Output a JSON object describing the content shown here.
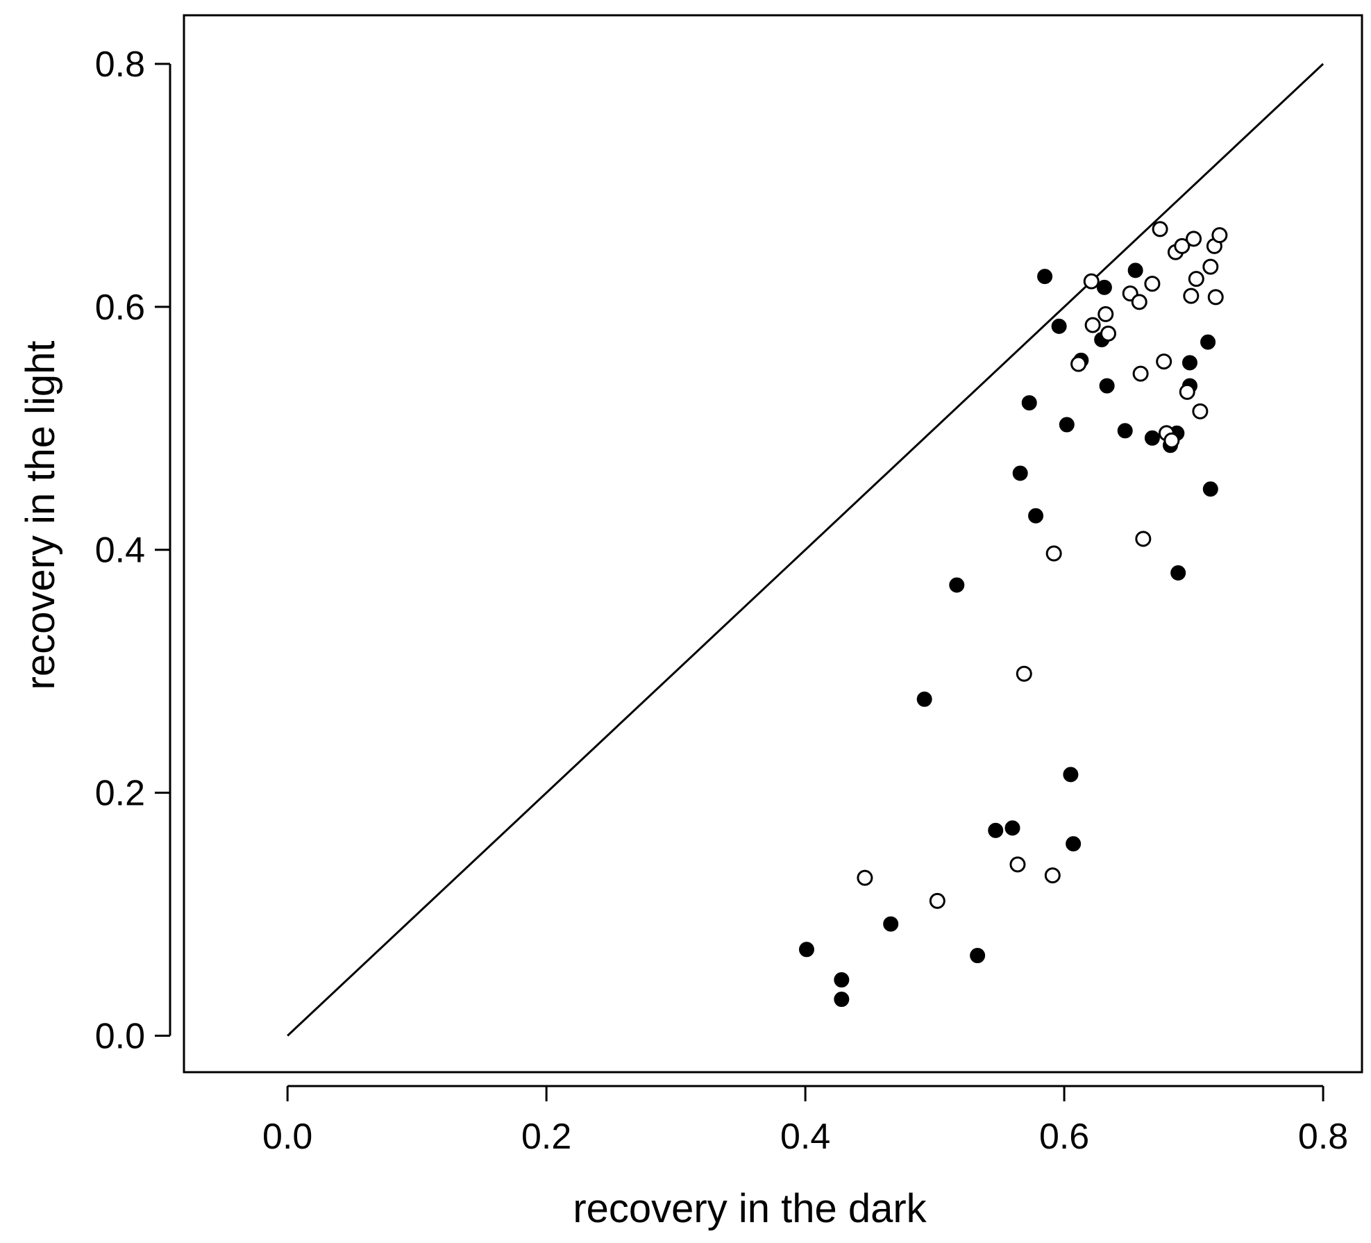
{
  "chart_data": {
    "type": "scatter",
    "title": "",
    "xlabel": "recovery  in the dark",
    "ylabel": "recovery  in  the  light",
    "xlim": [
      -0.08,
      0.83
    ],
    "ylim": [
      -0.03,
      0.84
    ],
    "xticks": [
      0.0,
      0.2,
      0.4,
      0.6,
      0.8
    ],
    "yticks": [
      0.0,
      0.2,
      0.4,
      0.6,
      0.8
    ],
    "xtick_labels": [
      "0.0",
      "0.2",
      "0.4",
      "0.6",
      "0.8"
    ],
    "ytick_labels": [
      "0.0",
      "0.2",
      "0.4",
      "0.6",
      "0.8"
    ],
    "grid": false,
    "reference_line": {
      "x": [
        0.0,
        0.8
      ],
      "y": [
        0.0,
        0.8
      ]
    },
    "colors": {
      "marker": "#000000",
      "marker_open_fill": "#ffffff",
      "line": "#000000"
    },
    "series": [
      {
        "marker": "filled",
        "points": [
          [
            0.401,
            0.071
          ],
          [
            0.428,
            0.046
          ],
          [
            0.428,
            0.03
          ],
          [
            0.466,
            0.092
          ],
          [
            0.492,
            0.277
          ],
          [
            0.517,
            0.371
          ],
          [
            0.533,
            0.066
          ],
          [
            0.547,
            0.169
          ],
          [
            0.56,
            0.171
          ],
          [
            0.566,
            0.463
          ],
          [
            0.573,
            0.521
          ],
          [
            0.578,
            0.428
          ],
          [
            0.585,
            0.625
          ],
          [
            0.596,
            0.584
          ],
          [
            0.602,
            0.503
          ],
          [
            0.605,
            0.215
          ],
          [
            0.607,
            0.158
          ],
          [
            0.613,
            0.556
          ],
          [
            0.629,
            0.573
          ],
          [
            0.631,
            0.616
          ],
          [
            0.633,
            0.535
          ],
          [
            0.647,
            0.498
          ],
          [
            0.655,
            0.63
          ],
          [
            0.668,
            0.492
          ],
          [
            0.682,
            0.486
          ],
          [
            0.687,
            0.496
          ],
          [
            0.688,
            0.381
          ],
          [
            0.697,
            0.554
          ],
          [
            0.697,
            0.535
          ],
          [
            0.711,
            0.571
          ],
          [
            0.713,
            0.45
          ]
        ]
      },
      {
        "marker": "open",
        "points": [
          [
            0.446,
            0.13
          ],
          [
            0.502,
            0.111
          ],
          [
            0.564,
            0.141
          ],
          [
            0.569,
            0.298
          ],
          [
            0.591,
            0.132
          ],
          [
            0.592,
            0.397
          ],
          [
            0.611,
            0.553
          ],
          [
            0.621,
            0.621
          ],
          [
            0.622,
            0.585
          ],
          [
            0.632,
            0.594
          ],
          [
            0.634,
            0.578
          ],
          [
            0.651,
            0.611
          ],
          [
            0.658,
            0.604
          ],
          [
            0.659,
            0.545
          ],
          [
            0.661,
            0.409
          ],
          [
            0.668,
            0.619
          ],
          [
            0.674,
            0.664
          ],
          [
            0.677,
            0.555
          ],
          [
            0.679,
            0.496
          ],
          [
            0.683,
            0.49
          ],
          [
            0.686,
            0.645
          ],
          [
            0.691,
            0.65
          ],
          [
            0.695,
            0.53
          ],
          [
            0.698,
            0.609
          ],
          [
            0.7,
            0.656
          ],
          [
            0.702,
            0.623
          ],
          [
            0.705,
            0.514
          ],
          [
            0.713,
            0.633
          ],
          [
            0.716,
            0.65
          ],
          [
            0.717,
            0.608
          ],
          [
            0.72,
            0.659
          ]
        ]
      }
    ]
  }
}
